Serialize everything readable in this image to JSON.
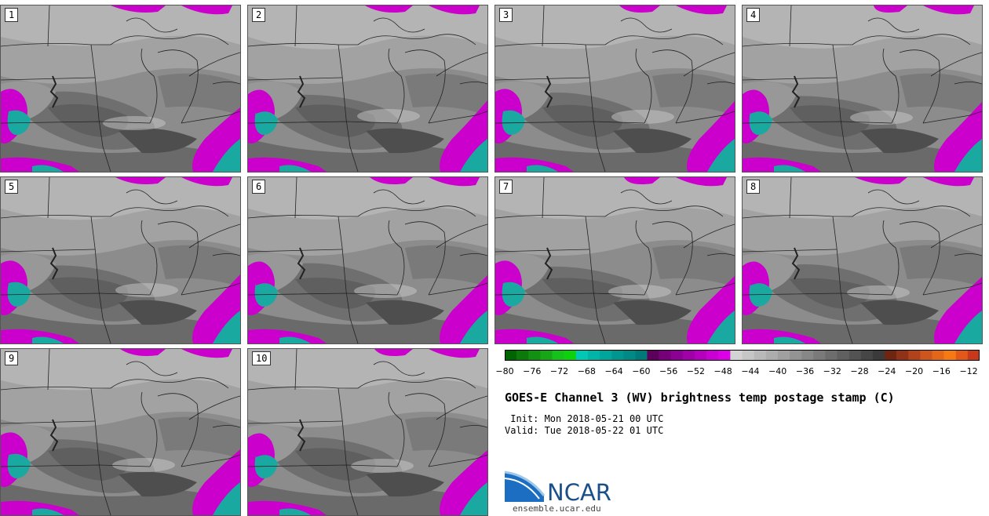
{
  "panels": [
    "1",
    "2",
    "3",
    "4",
    "5",
    "6",
    "7",
    "8",
    "9",
    "10"
  ],
  "colorbar": {
    "ticks": [
      "−80",
      "−76",
      "−72",
      "−68",
      "−64",
      "−60",
      "−56",
      "−52",
      "−48",
      "−44",
      "−40",
      "−36",
      "−32",
      "−28",
      "−24",
      "−20",
      "−16",
      "−12"
    ],
    "colors": [
      "#006400",
      "#0b7a0b",
      "#129012",
      "#16a616",
      "#14c21a",
      "#0ed10e",
      "#00c8b4",
      "#00b4a8",
      "#00a59b",
      "#009690",
      "#008985",
      "#007a78",
      "#5c005c",
      "#76007a",
      "#8c0094",
      "#a000a8",
      "#b400bc",
      "#c800d2",
      "#dc00e6",
      "#d3d3d3",
      "#c6c6c6",
      "#b9b9b9",
      "#adadad",
      "#a0a0a0",
      "#939393",
      "#878787",
      "#7a7a7a",
      "#6d6d6d",
      "#606060",
      "#535353",
      "#464646",
      "#3a3a3a",
      "#6e2512",
      "#8f3217",
      "#b0431c",
      "#cc561e",
      "#e36719",
      "#f57a14",
      "#e2571a",
      "#c8381a"
    ]
  },
  "title": "GOES-E Channel 3 (WV) brightness temp postage stamp (C)",
  "init": " Init: Mon 2018-05-21 00 UTC",
  "valid": "Valid: Tue 2018-05-22 01 UTC",
  "logo_text": "NCAR",
  "url": "ensemble.ucar.edu",
  "colors": {
    "moist": "#cc00cc",
    "cold": "#1aa9a0",
    "background": "#8a8a8a"
  }
}
